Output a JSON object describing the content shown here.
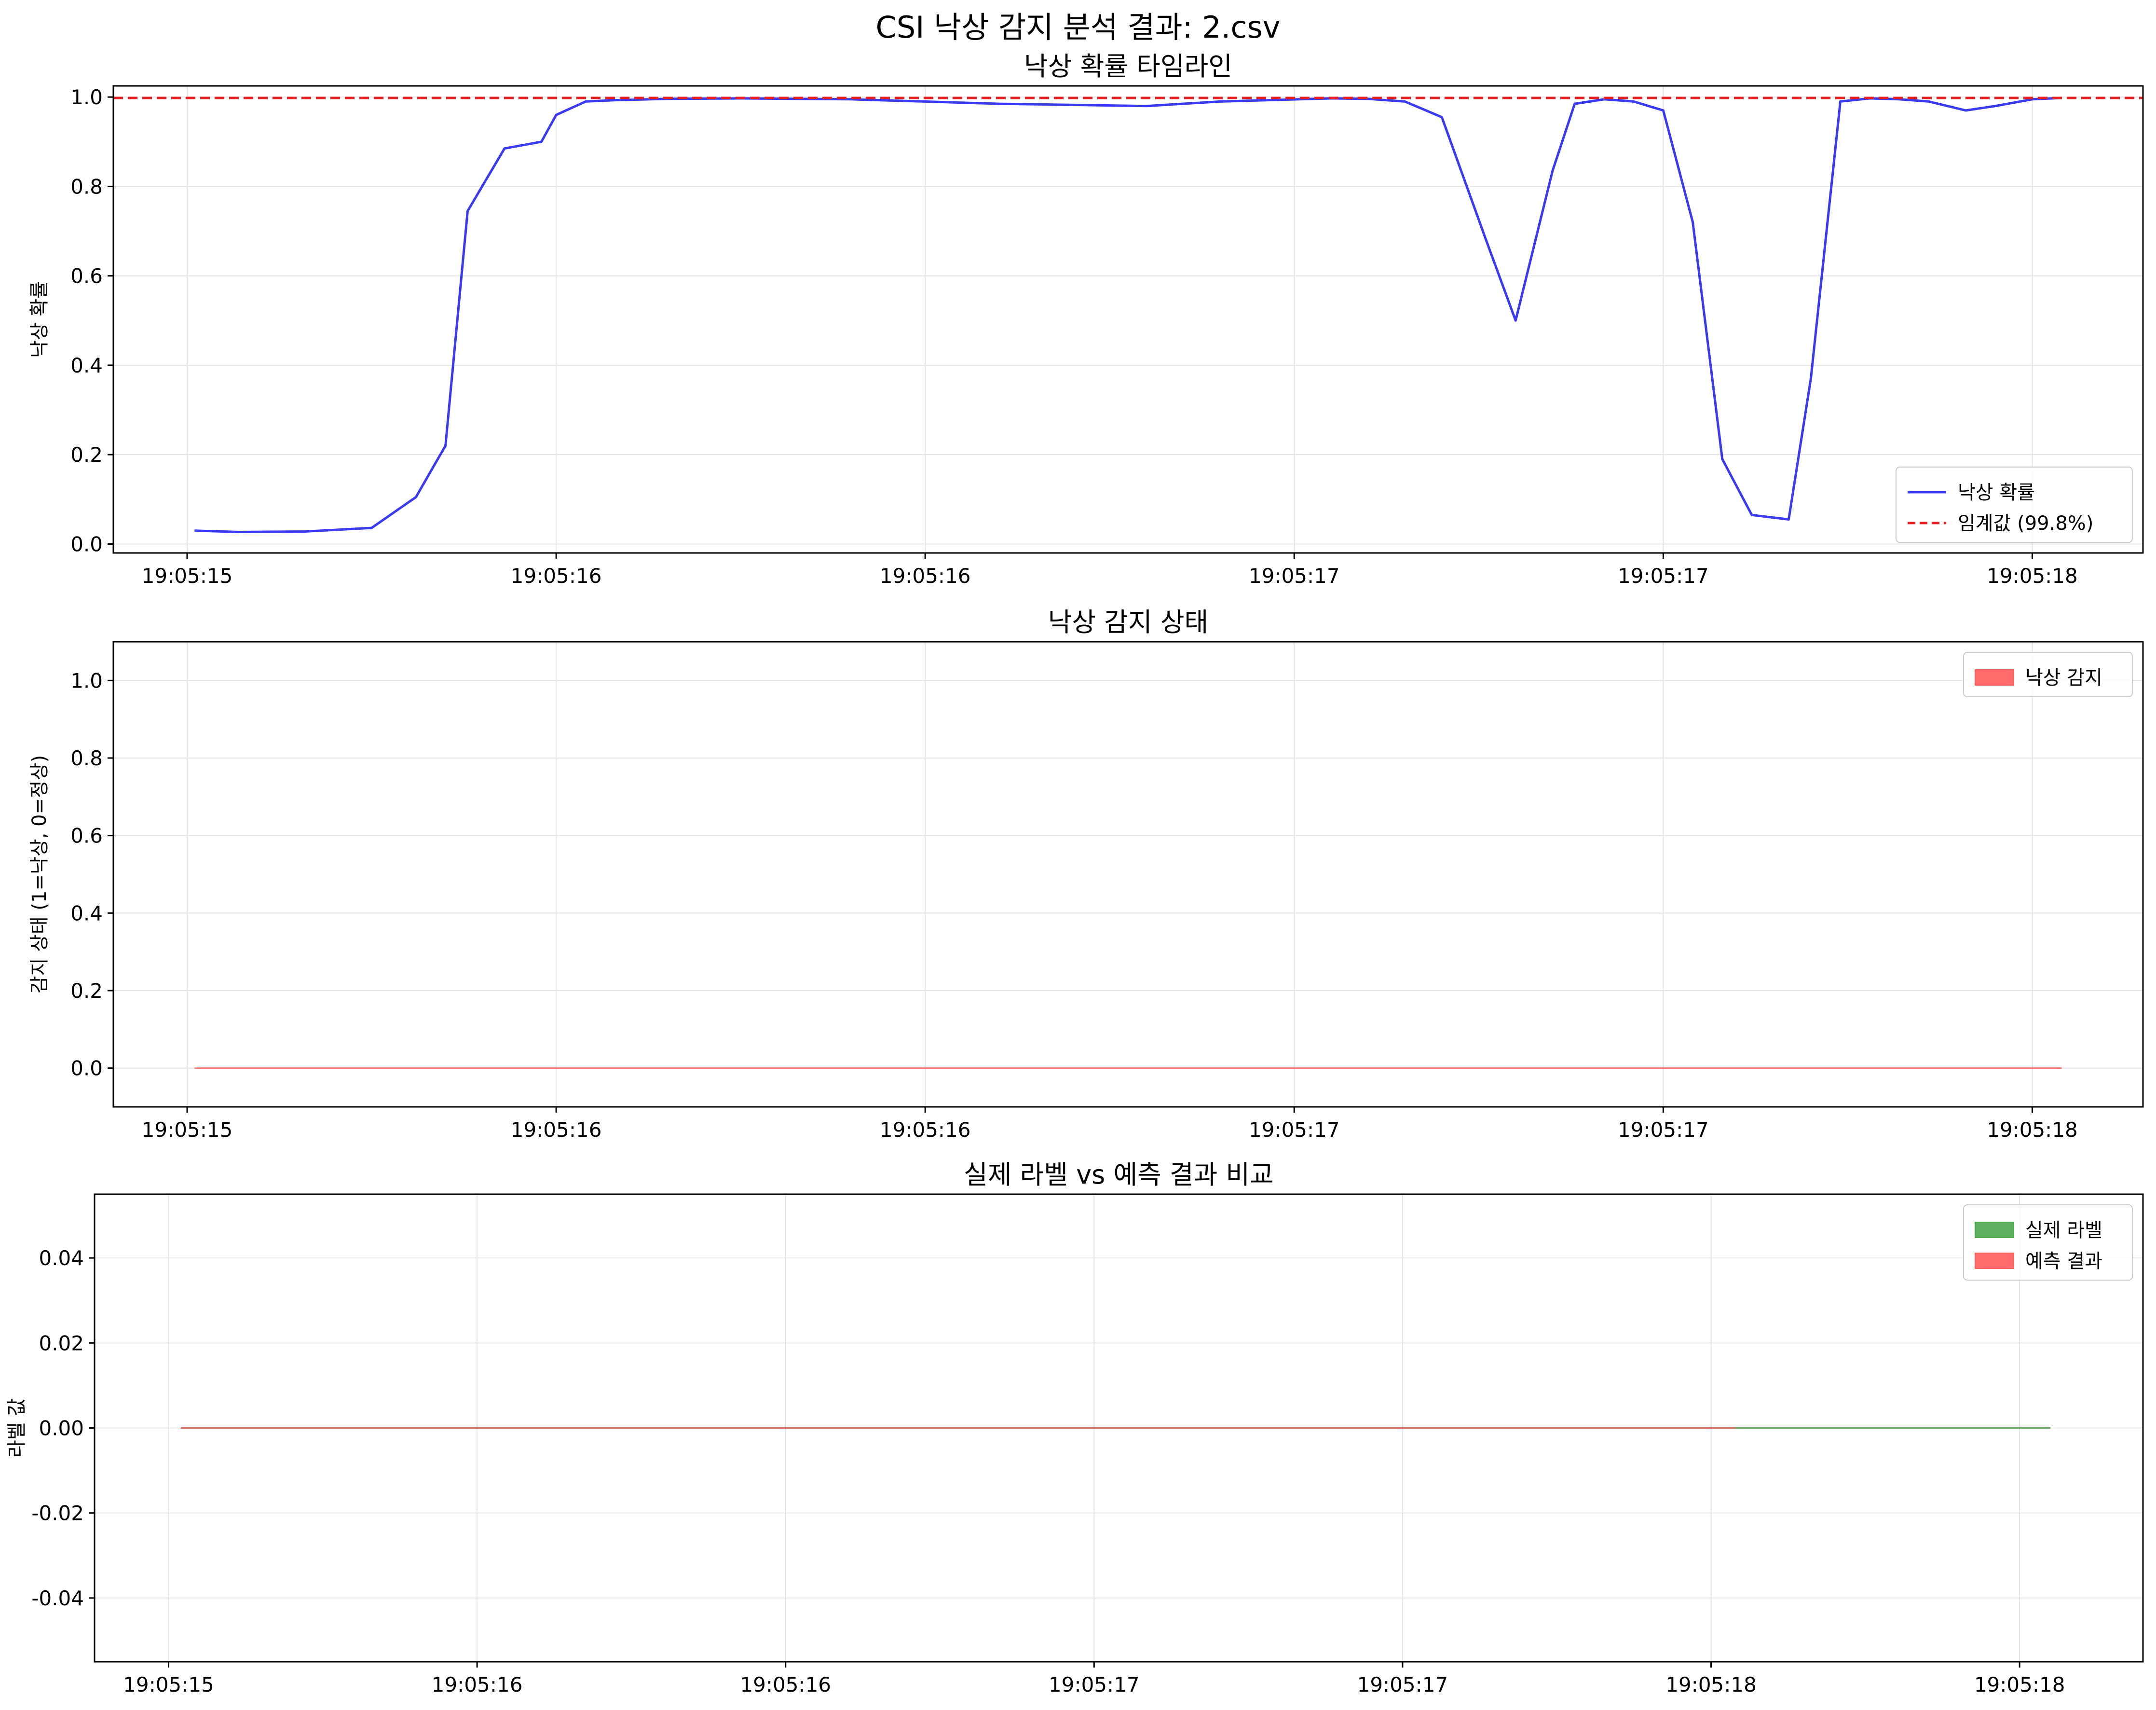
{
  "figure": {
    "title": "CSI 낙상 감지 분석 결과: 2.csv"
  },
  "chart_data": [
    {
      "type": "line",
      "title": "낙상 확률 타임라인",
      "xlabel": "",
      "ylabel": "낙상 확률",
      "x_tick_labels": [
        "19:05:15",
        "19:05:16",
        "19:05:16",
        "19:05:17",
        "19:05:17",
        "19:05:18"
      ],
      "x_tick_positions": [
        0.0,
        0.5,
        1.0,
        1.5,
        2.0,
        2.5
      ],
      "xlim": [
        -0.1,
        2.65
      ],
      "ylim": [
        -0.02,
        1.025
      ],
      "y_ticks": [
        0.0,
        0.2,
        0.4,
        0.6,
        0.8,
        1.0
      ],
      "y_tick_labels": [
        "0.0",
        "0.2",
        "0.4",
        "0.6",
        "0.8",
        "1.0"
      ],
      "grid": true,
      "legend": "lower-right",
      "series": [
        {
          "name": "낙상 확률",
          "color": "#3a3af0",
          "style": "solid",
          "x": [
            0.01,
            0.07,
            0.16,
            0.25,
            0.31,
            0.35,
            0.38,
            0.43,
            0.48,
            0.5,
            0.54,
            0.58,
            0.65,
            0.75,
            0.9,
            1.1,
            1.3,
            1.4,
            1.55,
            1.6,
            1.65,
            1.7,
            1.76,
            1.8,
            1.85,
            1.88,
            1.92,
            1.96,
            2.0,
            2.04,
            2.08,
            2.12,
            2.17,
            2.2,
            2.24,
            2.28,
            2.32,
            2.36,
            2.41,
            2.45,
            2.5,
            2.54
          ],
          "y": [
            0.03,
            0.027,
            0.028,
            0.036,
            0.105,
            0.22,
            0.745,
            0.885,
            0.9,
            0.96,
            0.99,
            0.993,
            0.996,
            0.997,
            0.995,
            0.985,
            0.98,
            0.99,
            0.997,
            0.996,
            0.99,
            0.955,
            0.68,
            0.5,
            0.835,
            0.985,
            0.995,
            0.99,
            0.97,
            0.72,
            0.19,
            0.065,
            0.055,
            0.37,
            0.99,
            0.997,
            0.995,
            0.99,
            0.97,
            0.98,
            0.995,
            0.998
          ]
        },
        {
          "name": "임계값 (99.8%)",
          "color": "#e82020",
          "style": "dashed",
          "x": [
            -0.1,
            2.65
          ],
          "y": [
            0.998,
            0.998
          ]
        }
      ]
    },
    {
      "type": "area",
      "title": "낙상 감지 상태",
      "xlabel": "",
      "ylabel": "감지 상태 (1=낙상, 0=정상)",
      "x_tick_labels": [
        "19:05:15",
        "19:05:16",
        "19:05:16",
        "19:05:17",
        "19:05:17",
        "19:05:18"
      ],
      "x_tick_positions": [
        0.0,
        0.5,
        1.0,
        1.5,
        2.0,
        2.5
      ],
      "xlim": [
        -0.1,
        2.65
      ],
      "ylim": [
        -0.1,
        1.1
      ],
      "y_ticks": [
        0.0,
        0.2,
        0.4,
        0.6,
        0.8,
        1.0
      ],
      "y_tick_labels": [
        "0.0",
        "0.2",
        "0.4",
        "0.6",
        "0.8",
        "1.0"
      ],
      "grid": true,
      "legend": "top-right",
      "series": [
        {
          "name": "낙상 감지",
          "color": "#ff5c5c",
          "x": [
            0.01,
            2.54
          ],
          "y": [
            0,
            0
          ]
        }
      ]
    },
    {
      "type": "area",
      "title": "실제 라벨 vs 예측 결과 비교",
      "xlabel": "",
      "ylabel": "라벨 값",
      "x_tick_labels": [
        "19:05:15",
        "19:05:16",
        "19:05:16",
        "19:05:17",
        "19:05:17",
        "19:05:18",
        "19:05:18"
      ],
      "x_tick_positions": [
        0.0,
        0.5,
        1.0,
        1.5,
        2.0,
        2.5,
        3.0
      ],
      "xlim": [
        -0.12,
        3.2
      ],
      "ylim": [
        -0.055,
        0.055
      ],
      "y_ticks": [
        -0.04,
        -0.02,
        0.0,
        0.02,
        0.04
      ],
      "y_tick_labels": [
        "-0.04",
        "-0.02",
        "0.00",
        "0.02",
        "0.04"
      ],
      "grid": true,
      "legend": "top-right",
      "series": [
        {
          "name": "실제 라벨",
          "color": "#4da64d",
          "x": [
            0.02,
            3.05
          ],
          "y": [
            0,
            0
          ]
        },
        {
          "name": "예측 결과",
          "color": "#ff5c5c",
          "x": [
            0.02,
            2.54
          ],
          "y": [
            0,
            0
          ]
        }
      ]
    }
  ]
}
